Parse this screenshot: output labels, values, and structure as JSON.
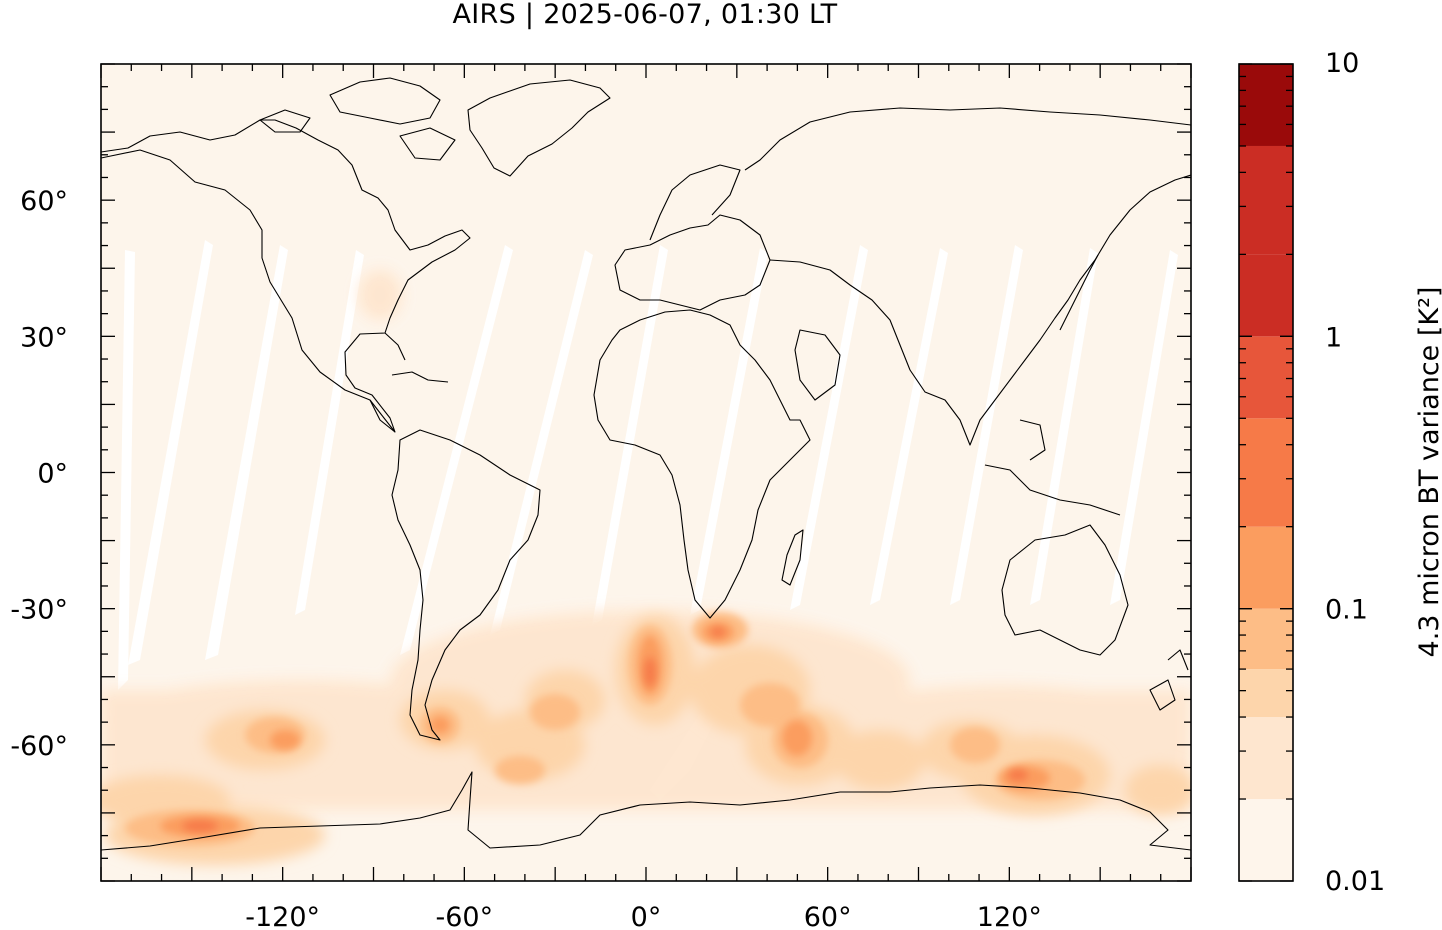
{
  "title": "AIRS | 2025-06-07, 01:30 LT",
  "map": {
    "projection": "equirectangular (plate carrée)",
    "lon_range": [
      -180,
      180
    ],
    "lat_range": [
      -90,
      90
    ],
    "background_color": "#fdf5eb",
    "swath_gap_color": "#ffffff",
    "coastline_color": "#000000"
  },
  "axes": {
    "x_ticks": [
      "-120°",
      "-60°",
      "0°",
      "60°",
      "120°"
    ],
    "y_ticks": [
      "60°",
      "30°",
      "0°",
      "-30°",
      "-60°"
    ]
  },
  "colorbar": {
    "label": "4.3 micron BT variance [K²]",
    "scale": "log",
    "range": [
      0.01,
      10
    ],
    "tick_labels": [
      "10",
      "1",
      "0.1",
      "0.01"
    ],
    "colors": [
      "#fef5eb",
      "#fee6cf",
      "#fdd5ab",
      "#fdbd86",
      "#fb9d5f",
      "#f67a48",
      "#e7563a",
      "#cb2d24",
      "#9a0a0a"
    ]
  },
  "features": {
    "hotspots": [
      "Drake Passage / southern Andes",
      "South Atlantic east of Argentina",
      "off the South African coast",
      "Southern Indian Ocean",
      "south of Australia",
      "Antarctic coast near the Ross Sea"
    ]
  }
}
